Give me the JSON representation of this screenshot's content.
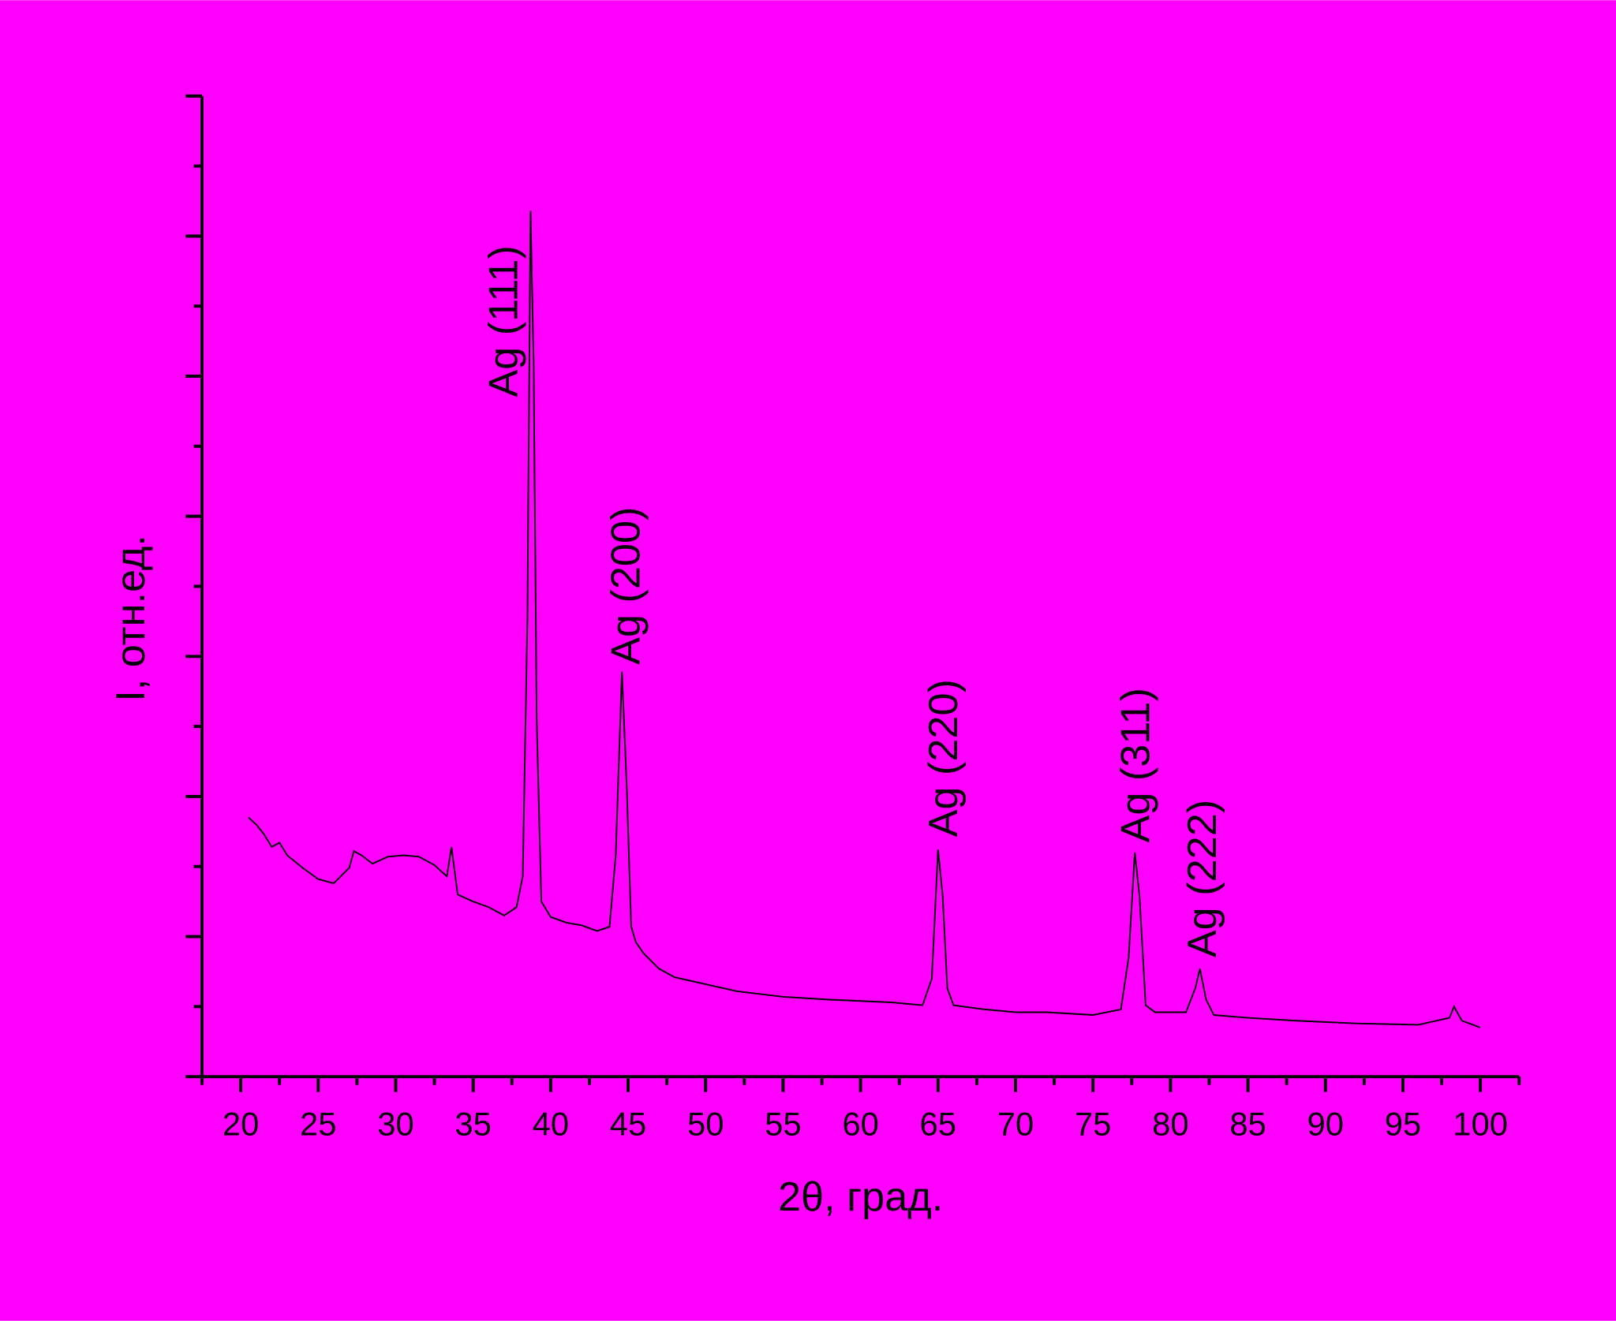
{
  "chart_data": {
    "type": "line",
    "xlabel": "2θ, град.",
    "ylabel": "I, отн.ед.",
    "color": "#000000",
    "background": "#ff00ff",
    "x": [
      20.5,
      21,
      21.5,
      22,
      22.5,
      23,
      24,
      25,
      26,
      27,
      27.3,
      27.8,
      28.5,
      29.5,
      30.5,
      31.5,
      32.5,
      33.3,
      33.6,
      34,
      35,
      36,
      37,
      37.8,
      38.2,
      38.5,
      38.7,
      38.9,
      39.1,
      39.4,
      40,
      41,
      42,
      43,
      43.8,
      44.2,
      44.6,
      44.9,
      45.2,
      45.5,
      46,
      47,
      48,
      50,
      52,
      55,
      58,
      62,
      64,
      64.6,
      65,
      65.3,
      65.6,
      66,
      68,
      70,
      72,
      75,
      76.8,
      77.3,
      77.7,
      78,
      78.4,
      79,
      81,
      81.6,
      81.9,
      82.3,
      82.8,
      85,
      88,
      92,
      96,
      98,
      98.3,
      98.8,
      100
    ],
    "values": [
      1.85,
      1.8,
      1.73,
      1.64,
      1.67,
      1.58,
      1.49,
      1.41,
      1.38,
      1.49,
      1.61,
      1.58,
      1.52,
      1.57,
      1.58,
      1.57,
      1.51,
      1.43,
      1.64,
      1.3,
      1.25,
      1.21,
      1.15,
      1.21,
      1.43,
      3.27,
      6.18,
      5.11,
      2.54,
      1.25,
      1.14,
      1.1,
      1.08,
      1.04,
      1.07,
      1.58,
      2.89,
      2.1,
      1.07,
      0.96,
      0.88,
      0.77,
      0.71,
      0.66,
      0.61,
      0.57,
      0.55,
      0.53,
      0.51,
      0.7,
      1.62,
      1.29,
      0.63,
      0.51,
      0.48,
      0.46,
      0.46,
      0.44,
      0.48,
      0.85,
      1.6,
      1.29,
      0.51,
      0.46,
      0.46,
      0.63,
      0.77,
      0.55,
      0.44,
      0.42,
      0.4,
      0.38,
      0.37,
      0.42,
      0.5,
      0.4,
      0.35
    ],
    "xlim": [
      17.5,
      102.5
    ],
    "xticks": [
      20,
      25,
      30,
      35,
      40,
      45,
      50,
      55,
      60,
      65,
      70,
      75,
      80,
      85,
      90,
      95,
      100
    ],
    "xminorticks": [
      17.5,
      22.5,
      27.5,
      32.5,
      37.5,
      42.5,
      47.5,
      52.5,
      57.5,
      62.5,
      67.5,
      72.5,
      77.5,
      82.5,
      87.5,
      92.5,
      97.5,
      102.5
    ],
    "ylim": [
      0,
      7
    ],
    "yticks": [
      1,
      2,
      3,
      4,
      5,
      6,
      7
    ],
    "yminorticks": [
      0.5,
      1.5,
      2.5,
      3.5,
      4.5,
      5.5,
      6.5
    ],
    "annotations": [
      {
        "text": "Ag (111)",
        "x": 36.9,
        "y": 4.85
      },
      {
        "text": "Ag (200)",
        "x": 44.8,
        "y": 2.94
      },
      {
        "text": "Ag (220)",
        "x": 65.3,
        "y": 1.71
      },
      {
        "text": "Ag (311)",
        "x": 77.7,
        "y": 1.67
      },
      {
        "text": "Ag (222)",
        "x": 82.0,
        "y": 0.85
      }
    ]
  }
}
